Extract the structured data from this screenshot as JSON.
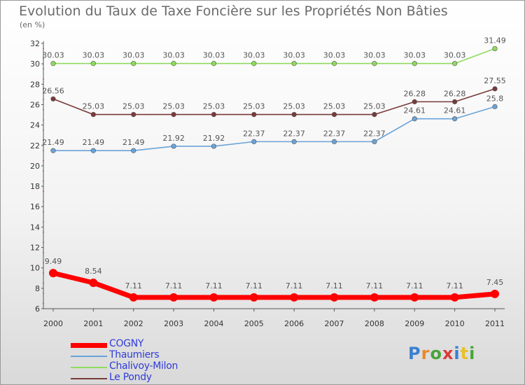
{
  "title": "Evolution du Taux de Taxe Foncière sur les Propriétés Non Bâties",
  "unit": "(en %)",
  "logo": "Proxiti",
  "chart_data": {
    "type": "line",
    "title": "Evolution du Taux de Taxe Foncière sur les Propriétés Non Bâties",
    "ylabel": "(en %)",
    "xlabel": "",
    "x": [
      "2000",
      "2001",
      "2002",
      "2003",
      "2004",
      "2005",
      "2006",
      "2007",
      "2008",
      "2009",
      "2010",
      "2011"
    ],
    "ylim": [
      6,
      32
    ],
    "yticks": [
      6,
      8,
      10,
      12,
      14,
      16,
      18,
      20,
      22,
      24,
      26,
      28,
      30,
      32
    ],
    "grid": false,
    "legend_position": "bottom-left",
    "series": [
      {
        "name": "COGNY",
        "color": "#ff0000",
        "values": [
          9.49,
          8.54,
          7.11,
          7.11,
          7.11,
          7.11,
          7.11,
          7.11,
          7.11,
          7.11,
          7.11,
          7.45
        ],
        "labels": [
          "9.49",
          "8.54",
          "7.11",
          "7.11",
          "7.11",
          "7.11",
          "7.11",
          "7.11",
          "7.11",
          "7.11",
          "7.11",
          "7.45"
        ]
      },
      {
        "name": "Thaumiers",
        "color": "#6aa3d8",
        "values": [
          21.49,
          21.49,
          21.49,
          21.92,
          21.92,
          22.37,
          22.37,
          22.37,
          22.37,
          24.61,
          24.61,
          25.8
        ],
        "labels": [
          "21.49",
          "21.49",
          "21.49",
          "21.92",
          "21.92",
          "22.37",
          "22.37",
          "22.37",
          "22.37",
          "24.61",
          "24.61",
          "25.8"
        ]
      },
      {
        "name": "Chalivoy-Milon",
        "color": "#8fdb5e",
        "values": [
          30.03,
          30.03,
          30.03,
          30.03,
          30.03,
          30.03,
          30.03,
          30.03,
          30.03,
          30.03,
          30.03,
          31.49
        ],
        "labels": [
          "30.03",
          "30.03",
          "30.03",
          "30.03",
          "30.03",
          "30.03",
          "30.03",
          "30.03",
          "30.03",
          "30.03",
          "30.03",
          "31.49"
        ]
      },
      {
        "name": "Le Pondy",
        "color": "#7a3a3a",
        "values": [
          26.56,
          25.03,
          25.03,
          25.03,
          25.03,
          25.03,
          25.03,
          25.03,
          25.03,
          26.28,
          26.28,
          27.55
        ],
        "labels": [
          "26.56",
          "25.03",
          "25.03",
          "25.03",
          "25.03",
          "25.03",
          "25.03",
          "25.03",
          "25.03",
          "26.28",
          "26.28",
          "27.55"
        ]
      }
    ]
  }
}
